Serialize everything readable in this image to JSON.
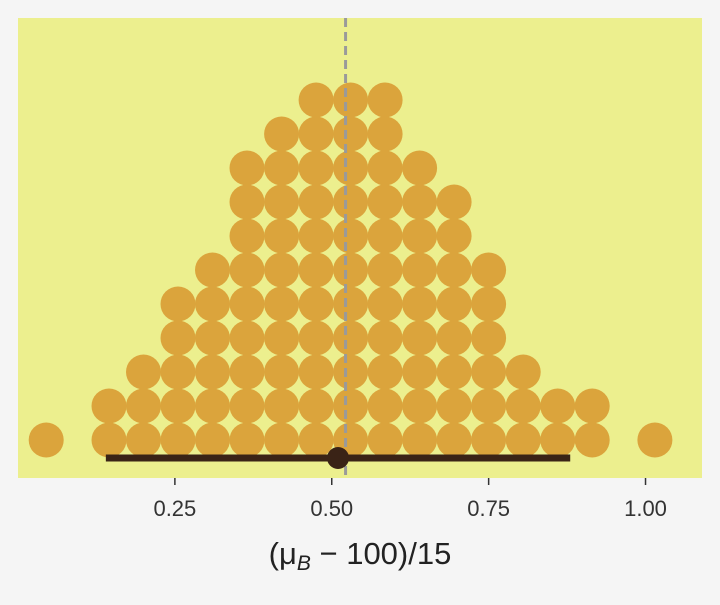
{
  "chart_data": {
    "type": "dotplot",
    "xlabel": {
      "open": "(",
      "mu": "μ",
      "sub": "B",
      "rest": " − 100)/15"
    },
    "xlim": [
      0.0,
      1.09
    ],
    "x_ticks": [
      {
        "value": 0.25,
        "label": "0.25"
      },
      {
        "value": 0.5,
        "label": "0.50"
      },
      {
        "value": 0.75,
        "label": "0.75"
      },
      {
        "value": 1.0,
        "label": "1.00"
      }
    ],
    "dot_columns": [
      {
        "x": 0.045,
        "count": 1
      },
      {
        "x": 0.145,
        "count": 2
      },
      {
        "x": 0.2,
        "count": 3
      },
      {
        "x": 0.255,
        "count": 5
      },
      {
        "x": 0.31,
        "count": 6
      },
      {
        "x": 0.365,
        "count": 9
      },
      {
        "x": 0.42,
        "count": 10
      },
      {
        "x": 0.475,
        "count": 11
      },
      {
        "x": 0.53,
        "count": 11
      },
      {
        "x": 0.585,
        "count": 11
      },
      {
        "x": 0.64,
        "count": 9
      },
      {
        "x": 0.695,
        "count": 8
      },
      {
        "x": 0.75,
        "count": 6
      },
      {
        "x": 0.805,
        "count": 3
      },
      {
        "x": 0.86,
        "count": 2
      },
      {
        "x": 0.915,
        "count": 2
      },
      {
        "x": 1.015,
        "count": 1
      }
    ],
    "reference_line": {
      "x": 0.522,
      "style": "dashed"
    },
    "interval": {
      "low": 0.14,
      "high": 0.88,
      "point": 0.51
    },
    "colors": {
      "panel_background": "#ecef8e",
      "page_background": "#f5f5f5",
      "dot": "#dba43c",
      "interval": "#3a2316",
      "reference_line": "#9a9a9a",
      "tick_label": "#333333",
      "axis_title": "#222222"
    },
    "grid": false,
    "legend": "none"
  }
}
